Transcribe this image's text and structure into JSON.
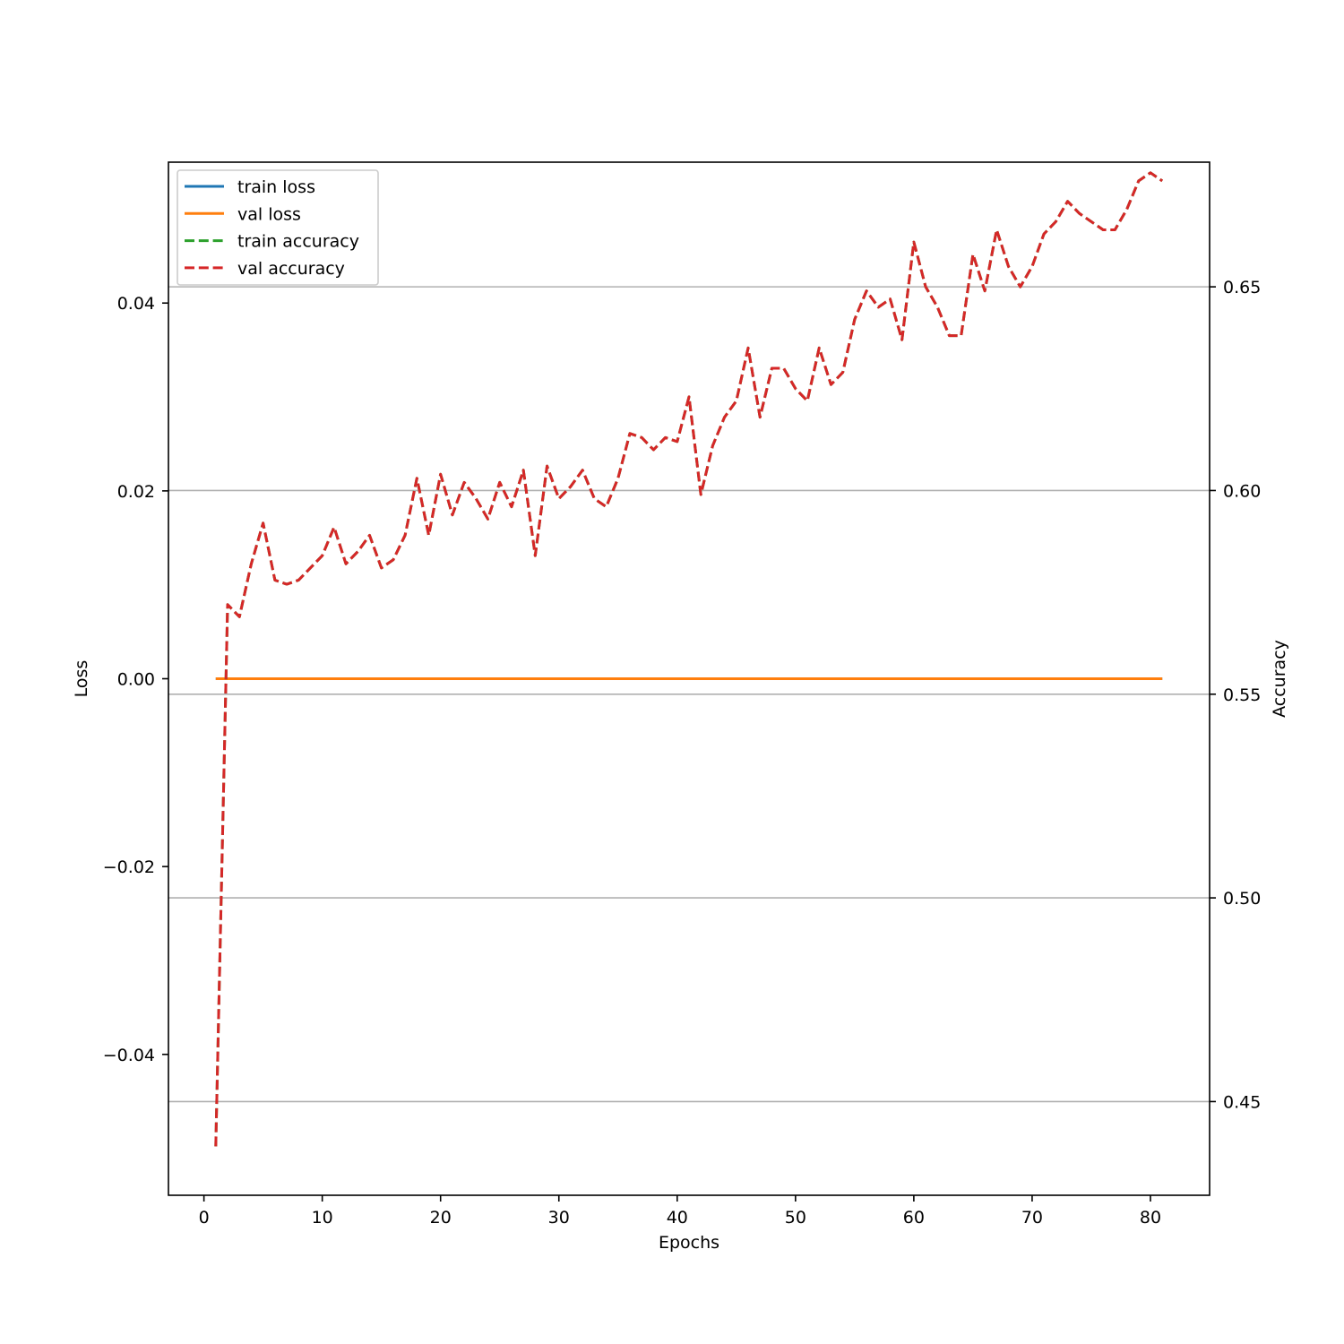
{
  "chart_data": {
    "type": "line",
    "xlabel": "Epochs",
    "ylabel_left": "Loss",
    "ylabel_right": "Accuracy",
    "xlim": [
      -3,
      85
    ],
    "ylim_left": [
      -0.055,
      0.055
    ],
    "ylim_right": [
      0.427,
      0.6806
    ],
    "x_ticks": [
      0,
      10,
      20,
      30,
      40,
      50,
      60,
      70,
      80
    ],
    "x_tick_labels": [
      "0",
      "10",
      "20",
      "30",
      "40",
      "50",
      "60",
      "70",
      "80"
    ],
    "y_left_ticks": [
      -0.04,
      -0.02,
      0.0,
      0.02,
      0.04
    ],
    "y_left_tick_labels": [
      "−0.04",
      "−0.02",
      "0.00",
      "0.02",
      "0.04"
    ],
    "y_right_ticks": [
      0.45,
      0.5,
      0.55,
      0.6,
      0.65
    ],
    "y_right_tick_labels": [
      "0.45",
      "0.50",
      "0.55",
      "0.60",
      "0.65"
    ],
    "grid": "right-axis horizontal",
    "legend_position": "upper-left",
    "legend": [
      {
        "label": "train loss",
        "color": "#1f77b4",
        "style": "solid"
      },
      {
        "label": "val loss",
        "color": "#ff7f0e",
        "style": "solid"
      },
      {
        "label": "train accuracy",
        "color": "#2ca02c",
        "style": "dashed"
      },
      {
        "label": "val accuracy",
        "color": "#d62728",
        "style": "dashed"
      }
    ],
    "x": [
      1,
      2,
      3,
      4,
      5,
      6,
      7,
      8,
      9,
      10,
      11,
      12,
      13,
      14,
      15,
      16,
      17,
      18,
      19,
      20,
      21,
      22,
      23,
      24,
      25,
      26,
      27,
      28,
      29,
      30,
      31,
      32,
      33,
      34,
      35,
      36,
      37,
      38,
      39,
      40,
      41,
      42,
      43,
      44,
      45,
      46,
      47,
      48,
      49,
      50,
      51,
      52,
      53,
      54,
      55,
      56,
      57,
      58,
      59,
      60,
      61,
      62,
      63,
      64,
      65,
      66,
      67,
      68,
      69,
      70,
      71,
      72,
      73,
      74,
      75,
      76,
      77,
      78,
      79,
      80,
      81
    ],
    "series": [
      {
        "name": "train loss",
        "axis": "left",
        "color": "#1f77b4",
        "style": "solid",
        "values": [
          0,
          0,
          0,
          0,
          0,
          0,
          0,
          0,
          0,
          0,
          0,
          0,
          0,
          0,
          0,
          0,
          0,
          0,
          0,
          0,
          0,
          0,
          0,
          0,
          0,
          0,
          0,
          0,
          0,
          0,
          0,
          0,
          0,
          0,
          0,
          0,
          0,
          0,
          0,
          0,
          0,
          0,
          0,
          0,
          0,
          0,
          0,
          0,
          0,
          0,
          0,
          0,
          0,
          0,
          0,
          0,
          0,
          0,
          0,
          0,
          0,
          0,
          0,
          0,
          0,
          0,
          0,
          0,
          0,
          0,
          0,
          0,
          0,
          0,
          0,
          0,
          0,
          0,
          0,
          0,
          0
        ]
      },
      {
        "name": "val loss",
        "axis": "left",
        "color": "#ff7f0e",
        "style": "solid",
        "values": [
          0,
          0,
          0,
          0,
          0,
          0,
          0,
          0,
          0,
          0,
          0,
          0,
          0,
          0,
          0,
          0,
          0,
          0,
          0,
          0,
          0,
          0,
          0,
          0,
          0,
          0,
          0,
          0,
          0,
          0,
          0,
          0,
          0,
          0,
          0,
          0,
          0,
          0,
          0,
          0,
          0,
          0,
          0,
          0,
          0,
          0,
          0,
          0,
          0,
          0,
          0,
          0,
          0,
          0,
          0,
          0,
          0,
          0,
          0,
          0,
          0,
          0,
          0,
          0,
          0,
          0,
          0,
          0,
          0,
          0,
          0,
          0,
          0,
          0,
          0,
          0,
          0,
          0,
          0,
          0,
          0
        ]
      },
      {
        "name": "train accuracy",
        "axis": "right",
        "color": "#2ca02c",
        "style": "dashed",
        "values": [
          0.439,
          0.572,
          0.569,
          0.582,
          0.592,
          0.578,
          0.577,
          0.578,
          0.581,
          0.584,
          0.591,
          0.582,
          0.585,
          0.589,
          0.581,
          0.583,
          0.589,
          0.603,
          0.589,
          0.604,
          0.594,
          0.602,
          0.598,
          0.593,
          0.602,
          0.596,
          0.605,
          0.584,
          0.606,
          0.598,
          0.601,
          0.605,
          0.598,
          0.596,
          0.603,
          0.614,
          0.613,
          0.61,
          0.613,
          0.612,
          0.623,
          0.599,
          0.611,
          0.618,
          0.622,
          0.635,
          0.618,
          0.63,
          0.63,
          0.625,
          0.622,
          0.635,
          0.626,
          0.629,
          0.642,
          0.649,
          0.645,
          0.647,
          0.637,
          0.661,
          0.65,
          0.645,
          0.638,
          0.638,
          0.658,
          0.649,
          0.664,
          0.655,
          0.65,
          0.655,
          0.663,
          0.666,
          0.671,
          0.668,
          0.666,
          0.664,
          0.664,
          0.669,
          0.676,
          0.678,
          0.676
        ]
      },
      {
        "name": "val accuracy",
        "axis": "right",
        "color": "#d62728",
        "style": "dashed",
        "values": [
          0.439,
          0.572,
          0.569,
          0.582,
          0.592,
          0.578,
          0.577,
          0.578,
          0.581,
          0.584,
          0.591,
          0.582,
          0.585,
          0.589,
          0.581,
          0.583,
          0.589,
          0.603,
          0.589,
          0.604,
          0.594,
          0.602,
          0.598,
          0.593,
          0.602,
          0.596,
          0.605,
          0.584,
          0.606,
          0.598,
          0.601,
          0.605,
          0.598,
          0.596,
          0.603,
          0.614,
          0.613,
          0.61,
          0.613,
          0.612,
          0.623,
          0.599,
          0.611,
          0.618,
          0.622,
          0.635,
          0.618,
          0.63,
          0.63,
          0.625,
          0.622,
          0.635,
          0.626,
          0.629,
          0.642,
          0.649,
          0.645,
          0.647,
          0.637,
          0.661,
          0.65,
          0.645,
          0.638,
          0.638,
          0.658,
          0.649,
          0.664,
          0.655,
          0.65,
          0.655,
          0.663,
          0.666,
          0.671,
          0.668,
          0.666,
          0.664,
          0.664,
          0.669,
          0.676,
          0.678,
          0.676
        ]
      }
    ]
  }
}
